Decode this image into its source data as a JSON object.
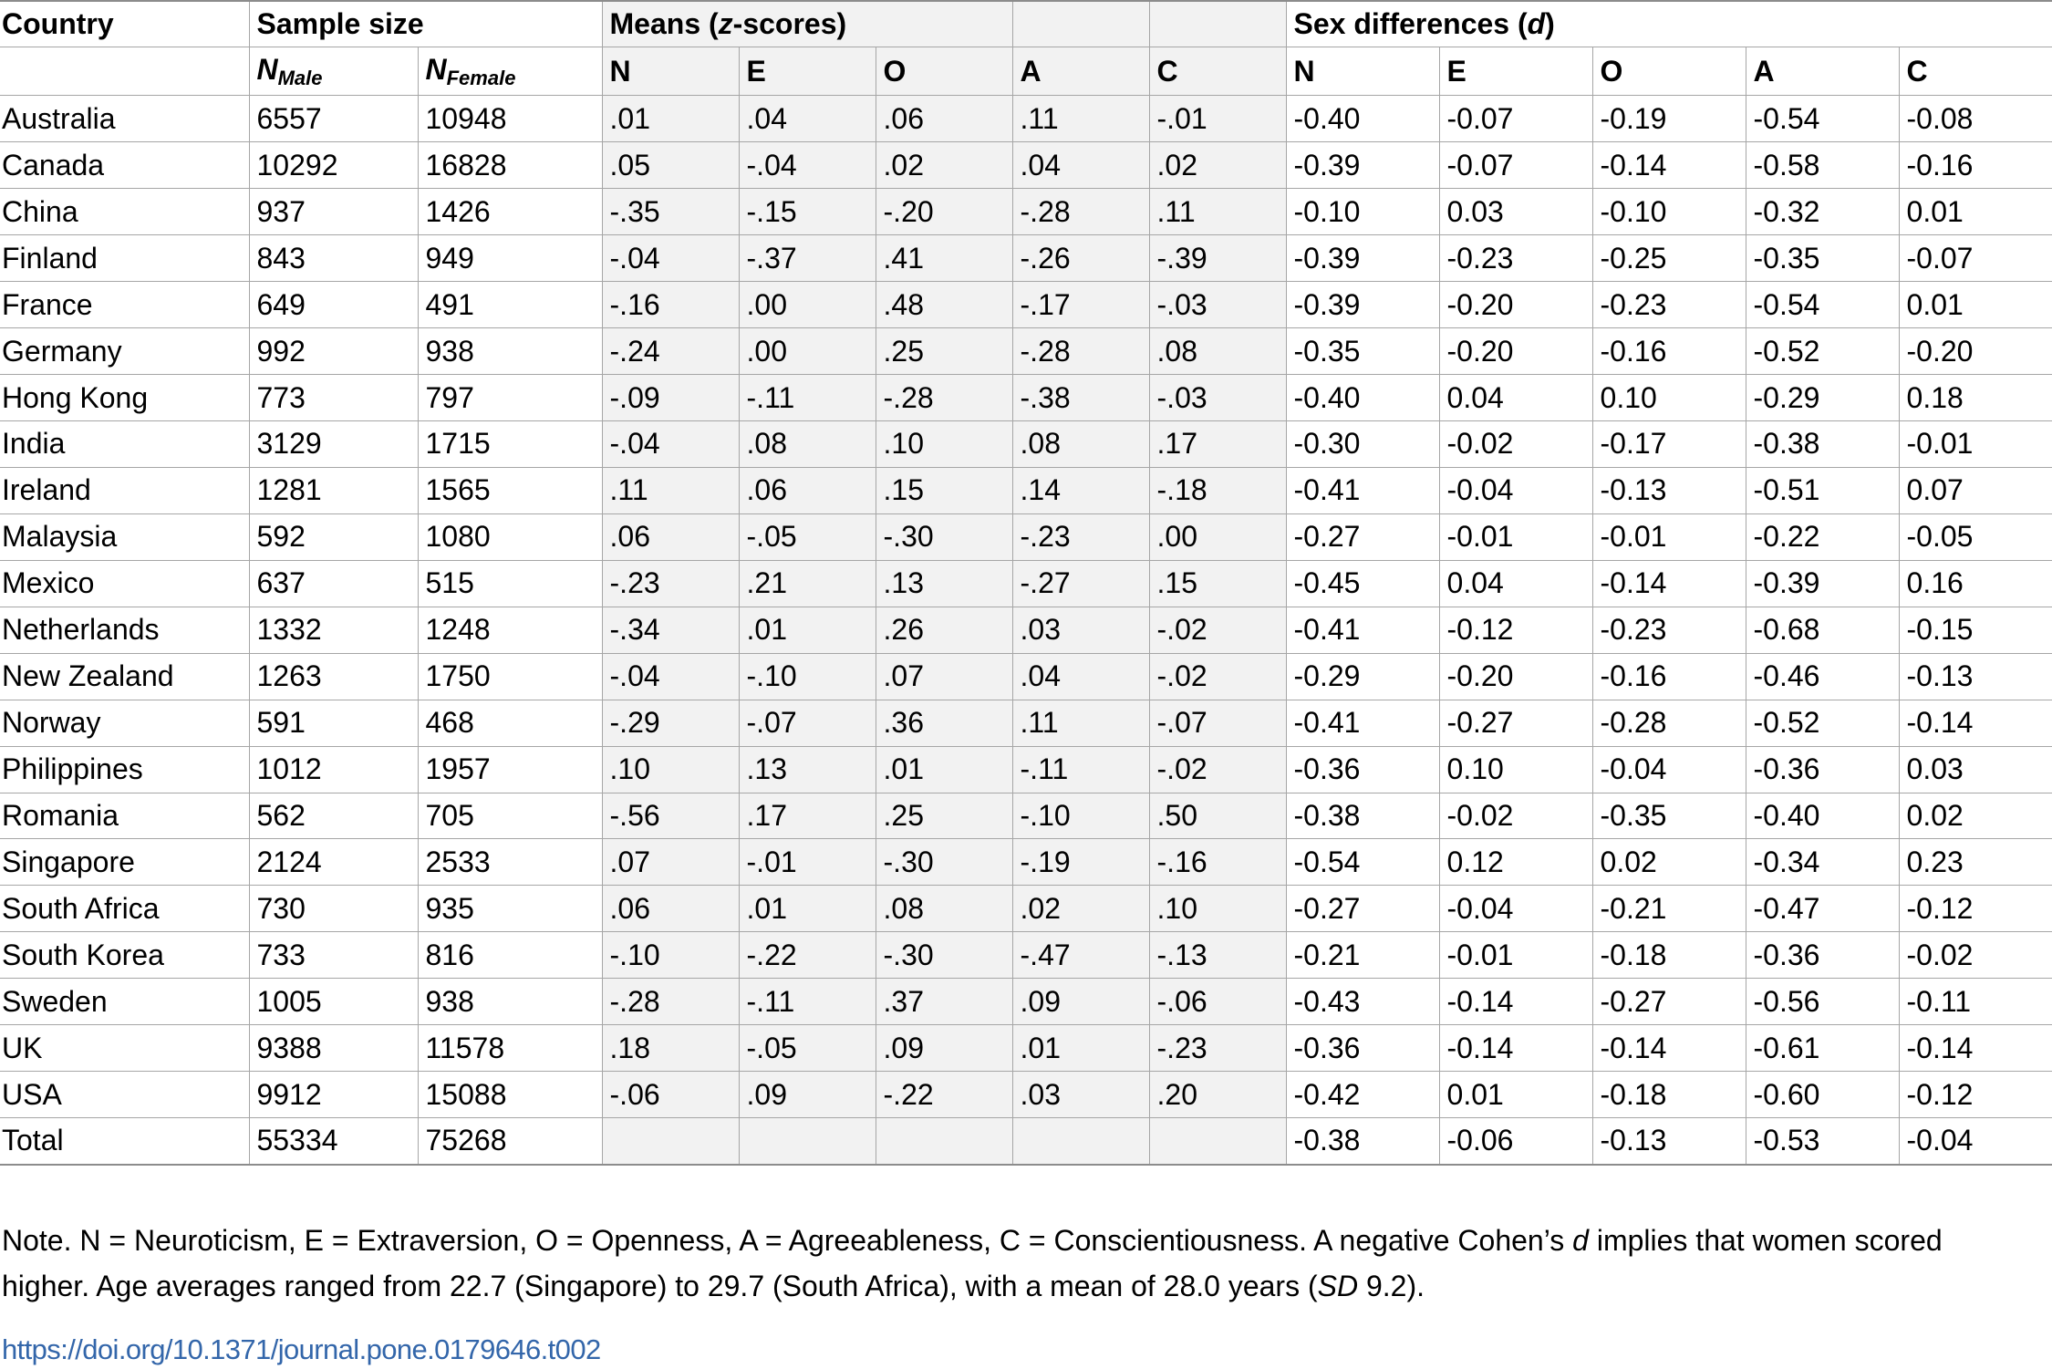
{
  "headers": {
    "country": "Country",
    "sample_size": "Sample size",
    "means_prefix": "Means (",
    "means_italic": "z",
    "means_suffix": "-scores)",
    "sexdiff_prefix": "Sex differences (",
    "sexdiff_italic": "d",
    "sexdiff_suffix": ")",
    "n_symbol": "N",
    "n_male_sub": "Male",
    "n_female_sub": "Female",
    "traits": [
      "N",
      "E",
      "O",
      "A",
      "C"
    ]
  },
  "rows": [
    {
      "country": "Australia",
      "nm": "6557",
      "nf": "10948",
      "means": [
        ".01",
        ".04",
        ".06",
        ".11",
        "-.01"
      ],
      "d": [
        "-0.40",
        "-0.07",
        "-0.19",
        "-0.54",
        "-0.08"
      ]
    },
    {
      "country": "Canada",
      "nm": "10292",
      "nf": "16828",
      "means": [
        ".05",
        "-.04",
        ".02",
        ".04",
        ".02"
      ],
      "d": [
        "-0.39",
        "-0.07",
        "-0.14",
        "-0.58",
        "-0.16"
      ]
    },
    {
      "country": "China",
      "nm": "937",
      "nf": "1426",
      "means": [
        "-.35",
        "-.15",
        "-.20",
        "-.28",
        ".11"
      ],
      "d": [
        "-0.10",
        "0.03",
        "-0.10",
        "-0.32",
        "0.01"
      ]
    },
    {
      "country": "Finland",
      "nm": "843",
      "nf": "949",
      "means": [
        "-.04",
        "-.37",
        ".41",
        "-.26",
        "-.39"
      ],
      "d": [
        "-0.39",
        "-0.23",
        "-0.25",
        "-0.35",
        "-0.07"
      ]
    },
    {
      "country": "France",
      "nm": "649",
      "nf": "491",
      "means": [
        "-.16",
        ".00",
        ".48",
        "-.17",
        "-.03"
      ],
      "d": [
        "-0.39",
        "-0.20",
        "-0.23",
        "-0.54",
        "0.01"
      ]
    },
    {
      "country": "Germany",
      "nm": "992",
      "nf": "938",
      "means": [
        "-.24",
        ".00",
        ".25",
        "-.28",
        ".08"
      ],
      "d": [
        "-0.35",
        "-0.20",
        "-0.16",
        "-0.52",
        "-0.20"
      ]
    },
    {
      "country": "Hong Kong",
      "nm": "773",
      "nf": "797",
      "means": [
        "-.09",
        "-.11",
        "-.28",
        "-.38",
        "-.03"
      ],
      "d": [
        "-0.40",
        "0.04",
        "0.10",
        "-0.29",
        "0.18"
      ]
    },
    {
      "country": "India",
      "nm": "3129",
      "nf": "1715",
      "means": [
        "-.04",
        ".08",
        ".10",
        ".08",
        ".17"
      ],
      "d": [
        "-0.30",
        "-0.02",
        "-0.17",
        "-0.38",
        "-0.01"
      ]
    },
    {
      "country": "Ireland",
      "nm": "1281",
      "nf": "1565",
      "means": [
        ".11",
        ".06",
        ".15",
        ".14",
        "-.18"
      ],
      "d": [
        "-0.41",
        "-0.04",
        "-0.13",
        "-0.51",
        "0.07"
      ]
    },
    {
      "country": "Malaysia",
      "nm": "592",
      "nf": "1080",
      "means": [
        ".06",
        "-.05",
        "-.30",
        "-.23",
        ".00"
      ],
      "d": [
        "-0.27",
        "-0.01",
        "-0.01",
        "-0.22",
        "-0.05"
      ]
    },
    {
      "country": "Mexico",
      "nm": "637",
      "nf": "515",
      "means": [
        "-.23",
        ".21",
        ".13",
        "-.27",
        ".15"
      ],
      "d": [
        "-0.45",
        "0.04",
        "-0.14",
        "-0.39",
        "0.16"
      ]
    },
    {
      "country": "Netherlands",
      "nm": "1332",
      "nf": "1248",
      "means": [
        "-.34",
        ".01",
        ".26",
        ".03",
        "-.02"
      ],
      "d": [
        "-0.41",
        "-0.12",
        "-0.23",
        "-0.68",
        "-0.15"
      ]
    },
    {
      "country": "New Zealand",
      "nm": "1263",
      "nf": "1750",
      "means": [
        "-.04",
        "-.10",
        ".07",
        ".04",
        "-.02"
      ],
      "d": [
        "-0.29",
        "-0.20",
        "-0.16",
        "-0.46",
        "-0.13"
      ]
    },
    {
      "country": "Norway",
      "nm": "591",
      "nf": "468",
      "means": [
        "-.29",
        "-.07",
        ".36",
        ".11",
        "-.07"
      ],
      "d": [
        "-0.41",
        "-0.27",
        "-0.28",
        "-0.52",
        "-0.14"
      ]
    },
    {
      "country": "Philippines",
      "nm": "1012",
      "nf": "1957",
      "means": [
        ".10",
        ".13",
        ".01",
        "-.11",
        "-.02"
      ],
      "d": [
        "-0.36",
        "0.10",
        "-0.04",
        "-0.36",
        "0.03"
      ]
    },
    {
      "country": "Romania",
      "nm": "562",
      "nf": "705",
      "means": [
        "-.56",
        ".17",
        ".25",
        "-.10",
        ".50"
      ],
      "d": [
        "-0.38",
        "-0.02",
        "-0.35",
        "-0.40",
        "0.02"
      ]
    },
    {
      "country": "Singapore",
      "nm": "2124",
      "nf": "2533",
      "means": [
        ".07",
        "-.01",
        "-.30",
        "-.19",
        "-.16"
      ],
      "d": [
        "-0.54",
        "0.12",
        "0.02",
        "-0.34",
        "0.23"
      ]
    },
    {
      "country": "South Africa",
      "nm": "730",
      "nf": "935",
      "means": [
        ".06",
        ".01",
        ".08",
        ".02",
        ".10"
      ],
      "d": [
        "-0.27",
        "-0.04",
        "-0.21",
        "-0.47",
        "-0.12"
      ]
    },
    {
      "country": "South Korea",
      "nm": "733",
      "nf": "816",
      "means": [
        "-.10",
        "-.22",
        "-.30",
        "-.47",
        "-.13"
      ],
      "d": [
        "-0.21",
        "-0.01",
        "-0.18",
        "-0.36",
        "-0.02"
      ]
    },
    {
      "country": "Sweden",
      "nm": "1005",
      "nf": "938",
      "means": [
        "-.28",
        "-.11",
        ".37",
        ".09",
        "-.06"
      ],
      "d": [
        "-0.43",
        "-0.14",
        "-0.27",
        "-0.56",
        "-0.11"
      ]
    },
    {
      "country": "UK",
      "nm": "9388",
      "nf": "11578",
      "means": [
        ".18",
        "-.05",
        ".09",
        ".01",
        "-.23"
      ],
      "d": [
        "-0.36",
        "-0.14",
        "-0.14",
        "-0.61",
        "-0.14"
      ]
    },
    {
      "country": "USA",
      "nm": "9912",
      "nf": "15088",
      "means": [
        "-.06",
        ".09",
        "-.22",
        ".03",
        ".20"
      ],
      "d": [
        "-0.42",
        "0.01",
        "-0.18",
        "-0.60",
        "-0.12"
      ]
    },
    {
      "country": "Total",
      "nm": "55334",
      "nf": "75268",
      "means": [
        "",
        "",
        "",
        "",
        ""
      ],
      "d": [
        "-0.38",
        "-0.06",
        "-0.13",
        "-0.53",
        "-0.04"
      ]
    }
  ],
  "note": {
    "part1": "Note. N = Neuroticism, E = Extraversion, O = Openness, A = Agreeableness, C = Conscientiousness. A negative Cohen’s ",
    "part1_italic": "d",
    "part2": " implies that women scored higher. Age averages ranged from 22.7 (Singapore) to 29.7 (South Africa), with a mean of 28.0 years (",
    "part2_italic": "SD",
    "part3": " 9.2)."
  },
  "doi": "https://doi.org/10.1371/journal.pone.0179646.t002"
}
